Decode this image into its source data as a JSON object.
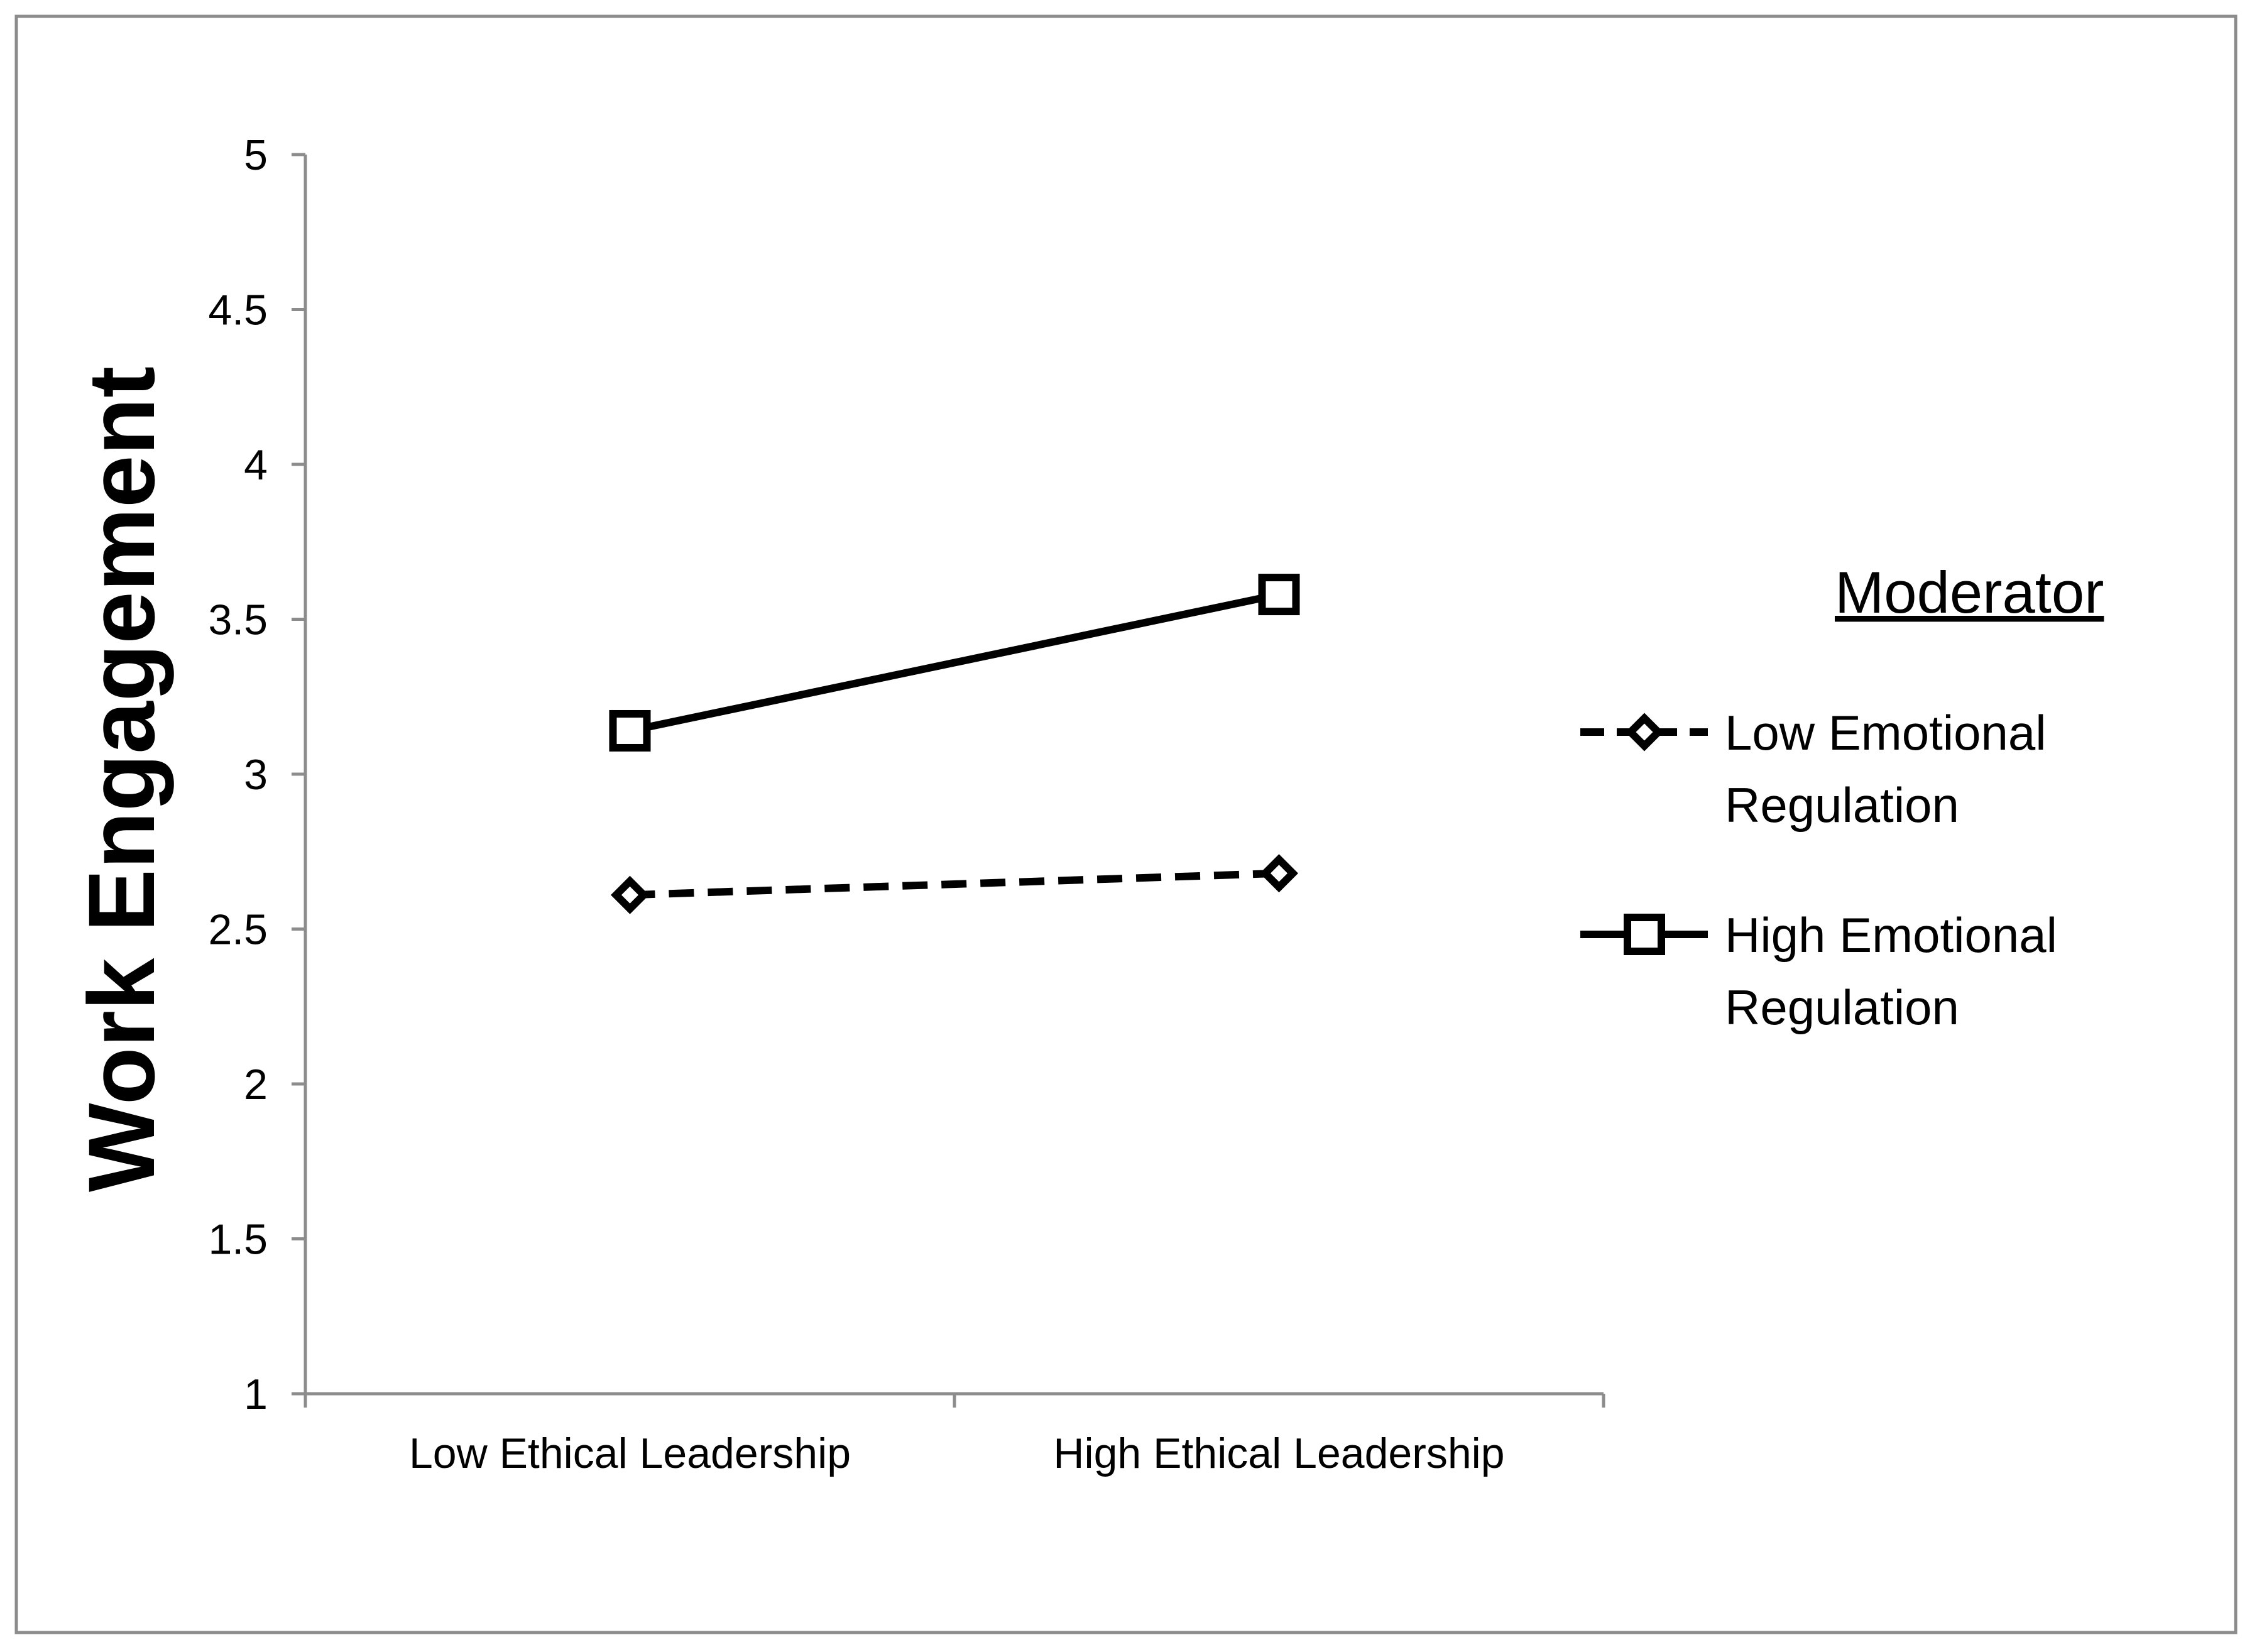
{
  "chart_data": {
    "type": "line",
    "ylabel": "Work Engagement",
    "xlabel": "",
    "categories": [
      "Low Ethical Leadership",
      "High Ethical Leadership"
    ],
    "ylim": [
      1,
      5
    ],
    "yticks": [
      "1",
      "1.5",
      "2",
      "2.5",
      "3",
      "3.5",
      "4",
      "4.5",
      "5"
    ],
    "grid": false,
    "legend_title": "Moderator",
    "legend_position": "right",
    "series": [
      {
        "name": "Low Emotional Regulation",
        "name_lines": [
          "Low Emotional",
          "Regulation"
        ],
        "values": [
          2.61,
          2.68
        ],
        "line_style": "dashed",
        "marker": "diamond",
        "color": "#000000"
      },
      {
        "name": "High Emotional Regulation",
        "name_lines": [
          "High Emotional",
          "Regulation"
        ],
        "values": [
          3.14,
          3.58
        ],
        "line_style": "solid",
        "marker": "square",
        "color": "#000000"
      }
    ]
  }
}
